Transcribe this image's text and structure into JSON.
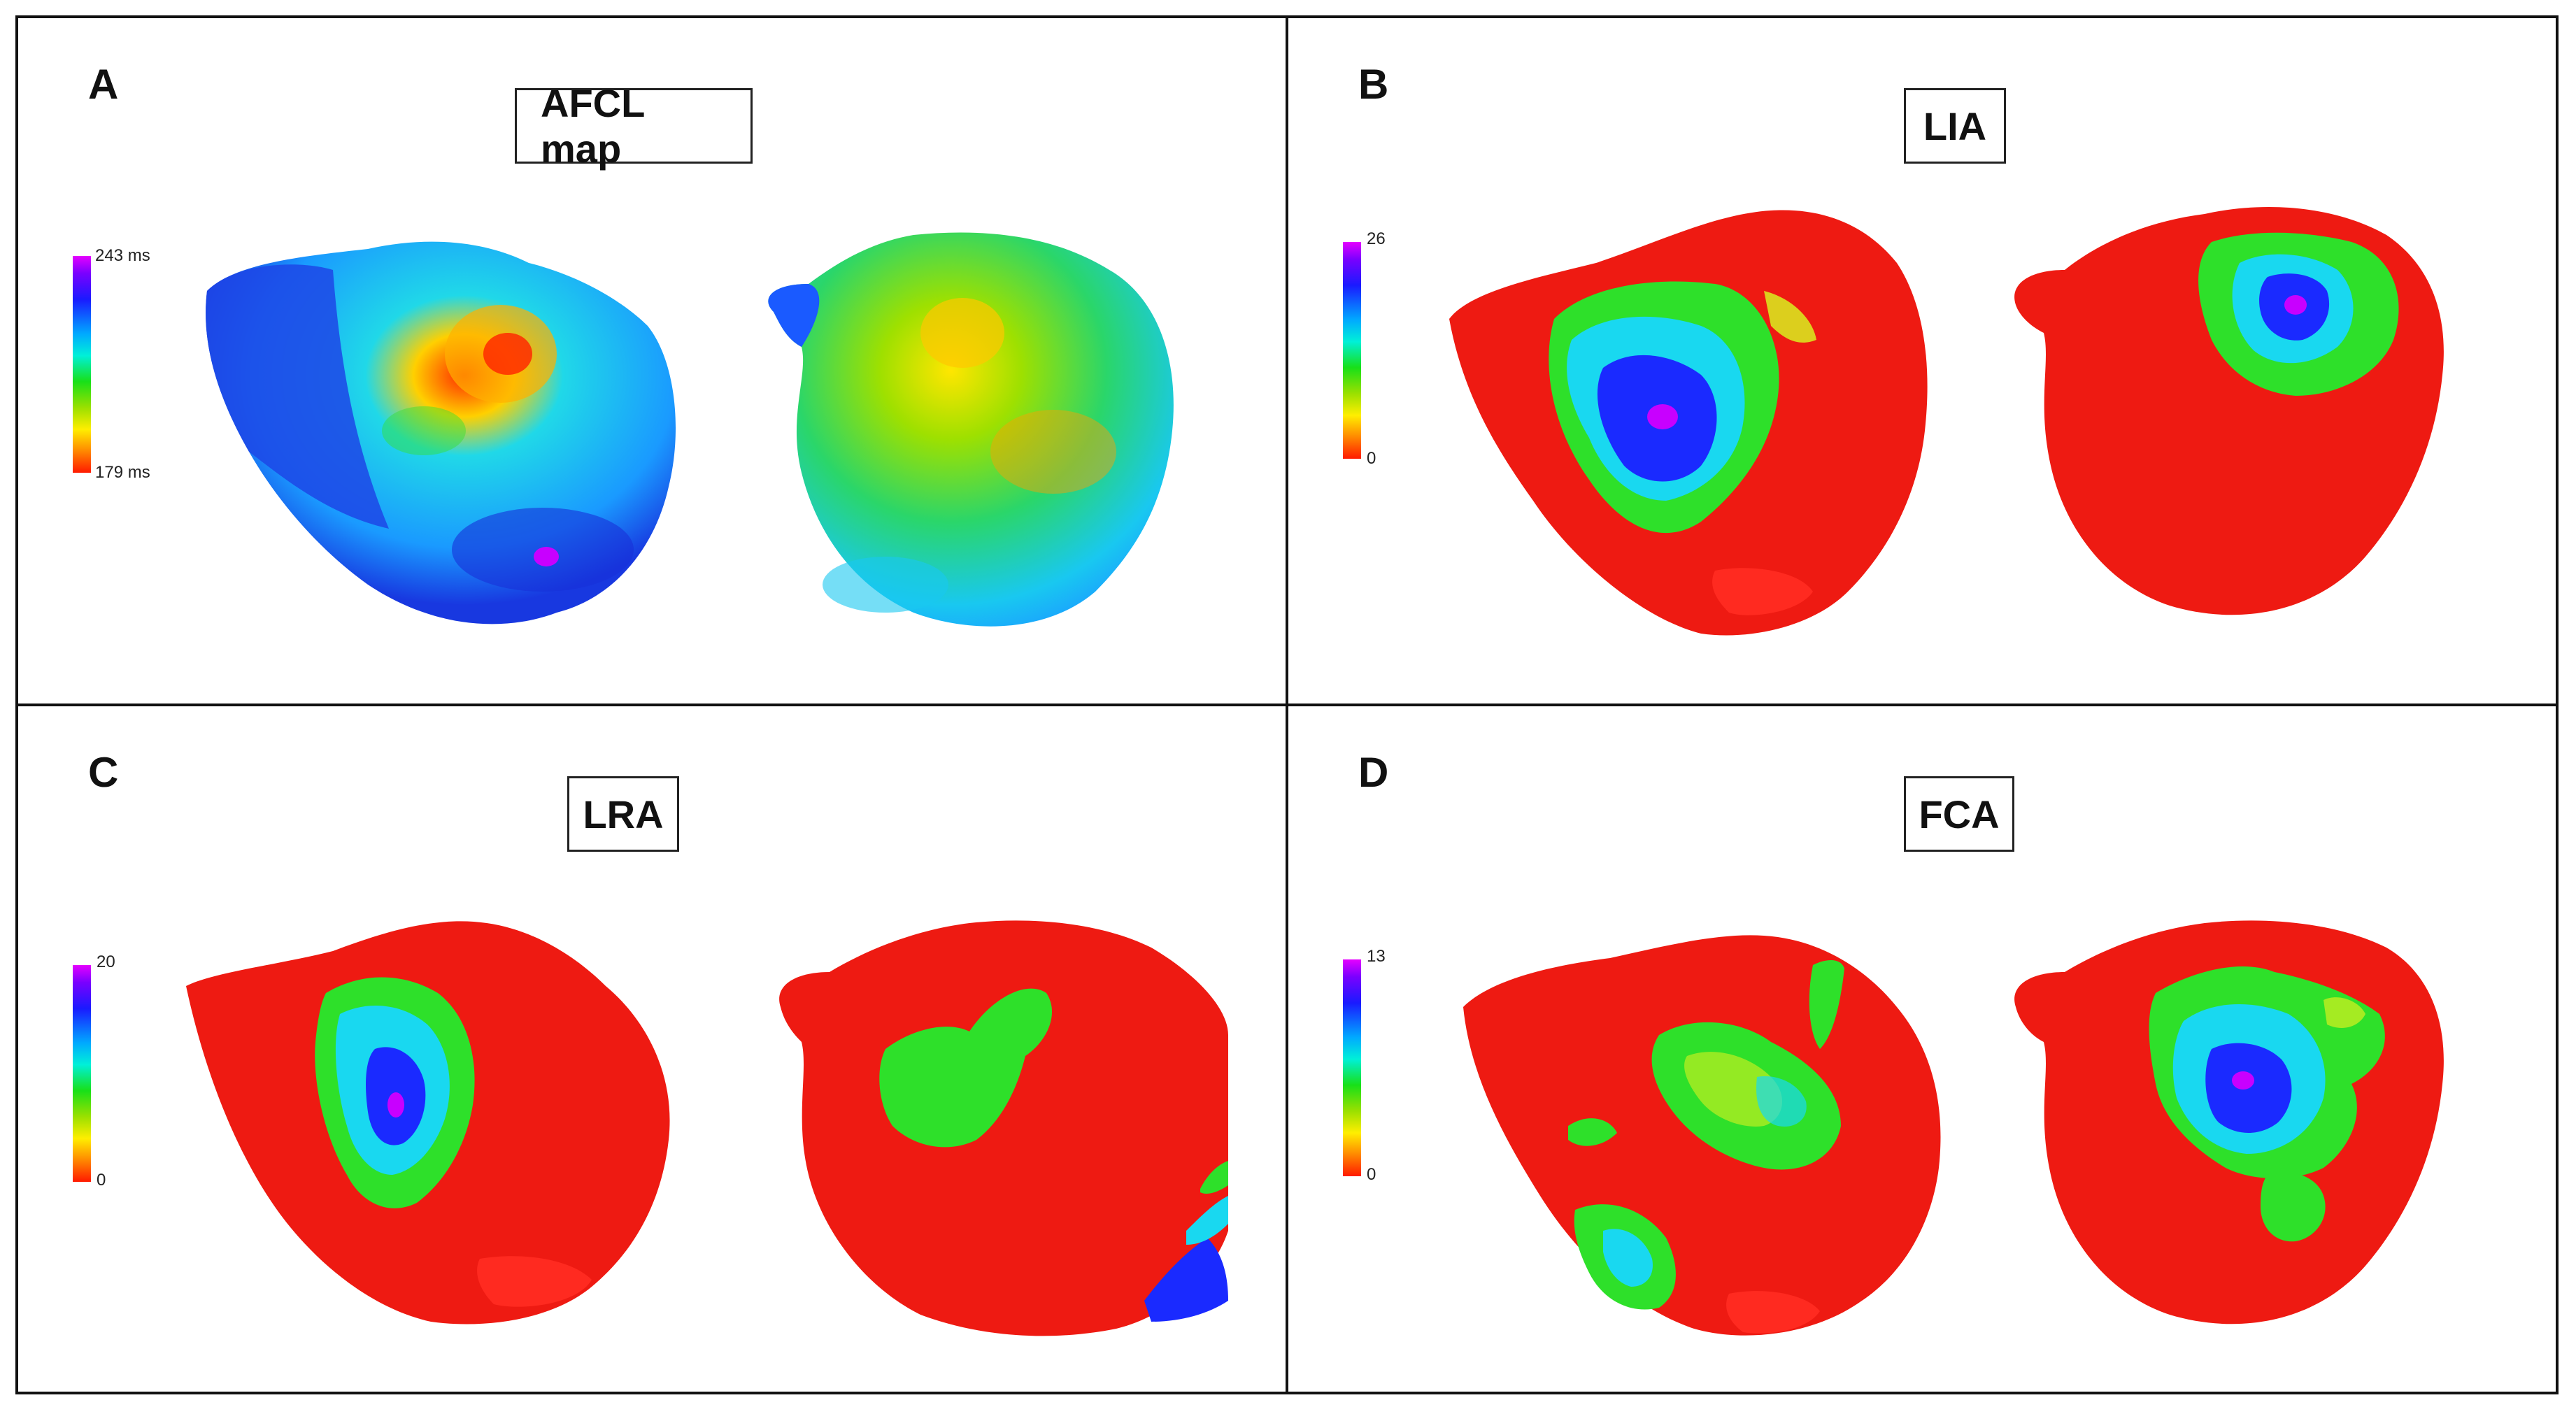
{
  "panels": {
    "A": {
      "letter": "A",
      "title": "AFCL map",
      "scale_max": "243 ms",
      "scale_min": "179 ms"
    },
    "B": {
      "letter": "B",
      "title": "LIA",
      "scale_max": "26",
      "scale_min": "0"
    },
    "C": {
      "letter": "C",
      "title": "LRA",
      "scale_max": "20",
      "scale_min": "0"
    },
    "D": {
      "letter": "D",
      "title": "FCA",
      "scale_max": "13",
      "scale_min": "0"
    }
  },
  "colors": {
    "tissue_red": "#ee1a12",
    "high_blue": "#1a2aff",
    "mid_cyan": "#19d8f0",
    "mid_green": "#2ee02a",
    "low_yellow": "#d8f020",
    "peak_magenta": "#c800ff"
  }
}
